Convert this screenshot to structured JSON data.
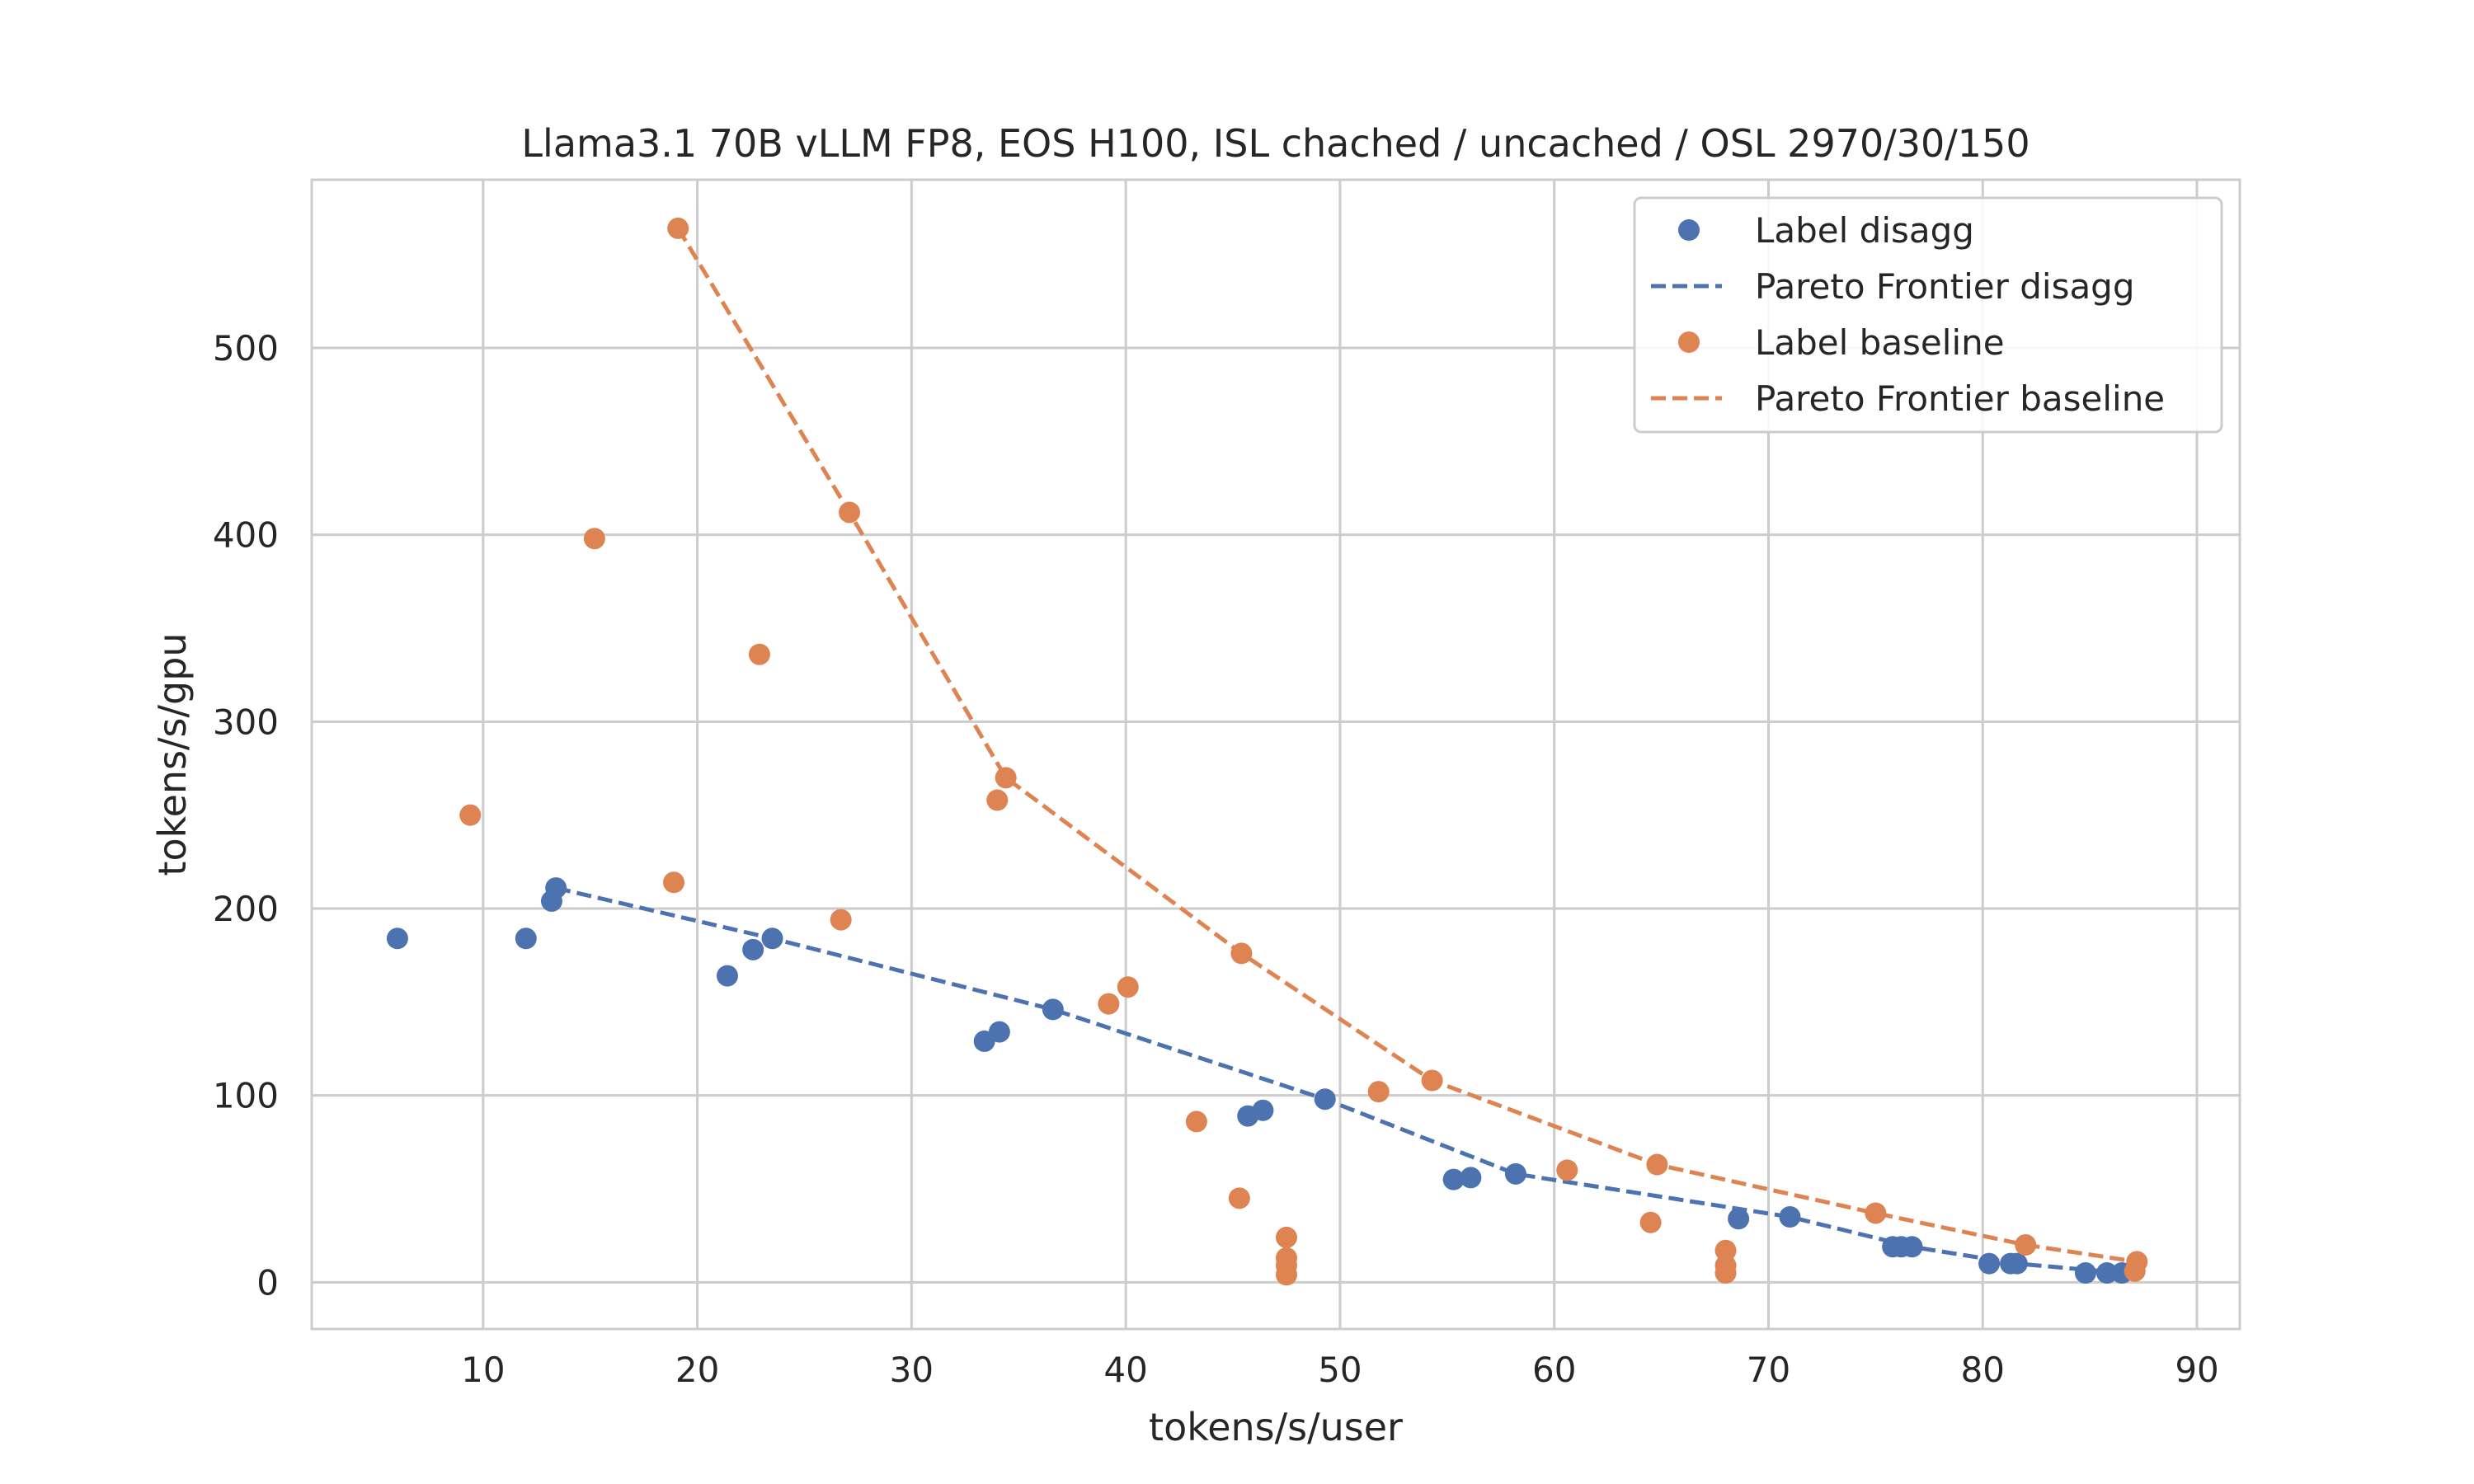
{
  "chart_data": {
    "type": "scatter",
    "title": "Llama3.1 70B vLLM FP8, EOS H100, ISL chached / uncached / OSL 2970/30/150",
    "xlabel": "tokens/s/user",
    "ylabel": "tokens/s/gpu",
    "xlim": [
      2,
      92
    ],
    "ylim": [
      -25,
      590
    ],
    "xticks": [
      10,
      20,
      30,
      40,
      50,
      60,
      70,
      80,
      90
    ],
    "yticks": [
      0,
      100,
      200,
      300,
      400,
      500
    ],
    "grid": true,
    "legend_position": "top-right",
    "series": [
      {
        "name": "Label disagg",
        "kind": "scatter",
        "color": "#4c72b0",
        "points": [
          [
            6.0,
            184
          ],
          [
            12.0,
            184
          ],
          [
            13.2,
            204
          ],
          [
            13.4,
            211
          ],
          [
            21.4,
            164
          ],
          [
            22.6,
            178
          ],
          [
            23.5,
            184
          ],
          [
            33.4,
            129
          ],
          [
            34.1,
            134
          ],
          [
            36.6,
            146
          ],
          [
            45.7,
            89
          ],
          [
            46.4,
            92
          ],
          [
            49.3,
            98
          ],
          [
            55.3,
            55
          ],
          [
            56.1,
            56
          ],
          [
            58.2,
            58
          ],
          [
            68.6,
            34
          ],
          [
            71.0,
            35
          ],
          [
            75.8,
            19
          ],
          [
            76.2,
            19
          ],
          [
            76.7,
            19
          ],
          [
            80.3,
            10
          ],
          [
            81.3,
            10
          ],
          [
            81.6,
            10
          ],
          [
            84.8,
            5
          ],
          [
            85.8,
            5
          ],
          [
            86.5,
            5
          ]
        ]
      },
      {
        "name": "Pareto Frontier disagg",
        "kind": "line",
        "color": "#4c72b0",
        "points": [
          [
            13.4,
            211
          ],
          [
            23.5,
            184
          ],
          [
            36.6,
            146
          ],
          [
            49.3,
            98
          ],
          [
            58.2,
            58
          ],
          [
            71.0,
            35
          ],
          [
            76.7,
            19
          ],
          [
            81.6,
            10
          ],
          [
            86.5,
            5
          ]
        ]
      },
      {
        "name": "Label baseline",
        "kind": "scatter",
        "color": "#dd8452",
        "points": [
          [
            9.4,
            250
          ],
          [
            15.2,
            398
          ],
          [
            18.9,
            214
          ],
          [
            19.1,
            564
          ],
          [
            22.9,
            336
          ],
          [
            26.7,
            194
          ],
          [
            27.1,
            412
          ],
          [
            34.0,
            258
          ],
          [
            34.4,
            270
          ],
          [
            39.2,
            149
          ],
          [
            40.1,
            158
          ],
          [
            43.3,
            86
          ],
          [
            45.3,
            45
          ],
          [
            45.4,
            176
          ],
          [
            47.5,
            24
          ],
          [
            47.5,
            13
          ],
          [
            47.5,
            9
          ],
          [
            47.5,
            4
          ],
          [
            51.8,
            102
          ],
          [
            54.3,
            108
          ],
          [
            60.6,
            60
          ],
          [
            64.5,
            32
          ],
          [
            64.8,
            63
          ],
          [
            68.0,
            17
          ],
          [
            68.0,
            9
          ],
          [
            68.0,
            5
          ],
          [
            75.0,
            37
          ],
          [
            82.0,
            20
          ],
          [
            87.2,
            11
          ],
          [
            87.1,
            6
          ]
        ]
      },
      {
        "name": "Pareto Frontier baseline",
        "kind": "line",
        "color": "#dd8452",
        "points": [
          [
            19.1,
            564
          ],
          [
            27.1,
            412
          ],
          [
            34.4,
            270
          ],
          [
            45.4,
            176
          ],
          [
            54.3,
            108
          ],
          [
            64.8,
            63
          ],
          [
            75.0,
            37
          ],
          [
            82.0,
            20
          ],
          [
            87.2,
            11
          ]
        ]
      }
    ]
  }
}
